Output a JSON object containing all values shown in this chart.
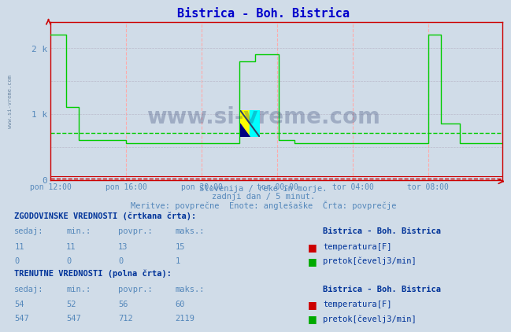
{
  "title": "Bistrica - Boh. Bistrica",
  "title_color": "#0000cc",
  "bg_color": "#d0dce8",
  "plot_bg_color": "#d0dce8",
  "ylim": [
    0,
    2400
  ],
  "yticks": [
    0,
    1000,
    2000
  ],
  "ytick_labels": [
    "0",
    "1 k",
    "2 k"
  ],
  "xtick_labels": [
    "pon 12:00",
    "pon 16:00",
    "pon 20:00",
    "tor 00:00",
    "tor 04:00",
    "tor 08:00"
  ],
  "grid_color_v": "#ffaaaa",
  "flow_color": "#00cc00",
  "temp_color": "#cc0000",
  "flow_hist_avg": 712,
  "temp_hist_avg": 13,
  "subtitle1": "Slovenija / reke in morje.",
  "subtitle2": "zadnji dan / 5 minut.",
  "subtitle3": "Meritve: povprečne  Enote: anglešaške  Črta: povprečje",
  "subtitle_color": "#5588bb",
  "table_header_color": "#003399",
  "table_val_color": "#5588bb",
  "station_name": "Bistrica - Boh. Bistrica",
  "hist_label": "ZGODOVINSKE VREDNOSTI (črtkana črta):",
  "curr_label": "TRENUTNE VREDNOSTI (polna črta):",
  "col_headers": [
    "sedaj:",
    "min.:",
    "povpr.:",
    "maks.:"
  ],
  "hist_temp": [
    11,
    11,
    13,
    15
  ],
  "hist_flow": [
    0,
    0,
    0,
    1
  ],
  "curr_temp": [
    54,
    52,
    56,
    60
  ],
  "curr_flow": [
    547,
    547,
    712,
    2119
  ],
  "temp_label": "temperatura[F]",
  "flow_label": "pretok[čevelj3/min]",
  "watermark": "www.si-vreme.com",
  "left_text": "www.si-vreme.com"
}
